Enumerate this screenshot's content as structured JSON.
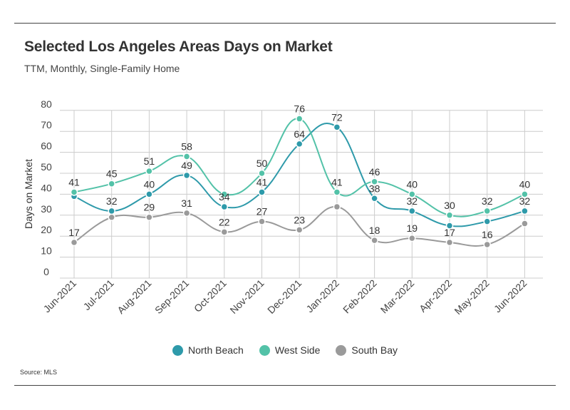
{
  "title": "Selected Los Angeles Areas Days on Market",
  "subtitle": "TTM, Monthly, Single-Family Home",
  "source": "Source:  MLS",
  "colors": {
    "north_beach": "#2e9aaa",
    "west_side": "#53c2a8",
    "south_bay": "#9a9a9a",
    "grid": "#cccccc"
  },
  "chart_data": {
    "type": "line",
    "title": "Selected Los Angeles Areas Days on Market",
    "subtitle": "TTM, Monthly, Single-Family Home",
    "xlabel": "",
    "ylabel": "Days on Market",
    "ylim": [
      0,
      80
    ],
    "yticks": [
      0,
      10,
      20,
      30,
      40,
      50,
      60,
      70,
      80
    ],
    "grid": true,
    "legend_position": "bottom",
    "categories": [
      "Jun-2021",
      "Jul-2021",
      "Aug-2021",
      "Sep-2021",
      "Oct-2021",
      "Nov-2021",
      "Dec-2021",
      "Jan-2022",
      "Feb-2022",
      "Mar-2022",
      "Apr-2022",
      "May-2022",
      "Jun-2022"
    ],
    "series": [
      {
        "name": "North Beach",
        "color": "#2e9aaa",
        "values": [
          39,
          32,
          40,
          49,
          34,
          41,
          64,
          72,
          38,
          32,
          25,
          27,
          32
        ],
        "labels": [
          null,
          32,
          40,
          49,
          34,
          41,
          64,
          72,
          38,
          32,
          null,
          null,
          32
        ]
      },
      {
        "name": "West Side",
        "color": "#53c2a8",
        "values": [
          41,
          45,
          51,
          58,
          40,
          50,
          76,
          41,
          46,
          40,
          30,
          32,
          40
        ],
        "labels": [
          41,
          45,
          51,
          58,
          null,
          50,
          76,
          41,
          46,
          40,
          30,
          32,
          40
        ]
      },
      {
        "name": "South Bay",
        "color": "#9a9a9a",
        "values": [
          17,
          29,
          29,
          31,
          22,
          27,
          23,
          34,
          18,
          19,
          17,
          16,
          26
        ],
        "labels": [
          17,
          null,
          29,
          31,
          22,
          27,
          23,
          null,
          18,
          19,
          17,
          16,
          null
        ]
      }
    ]
  }
}
